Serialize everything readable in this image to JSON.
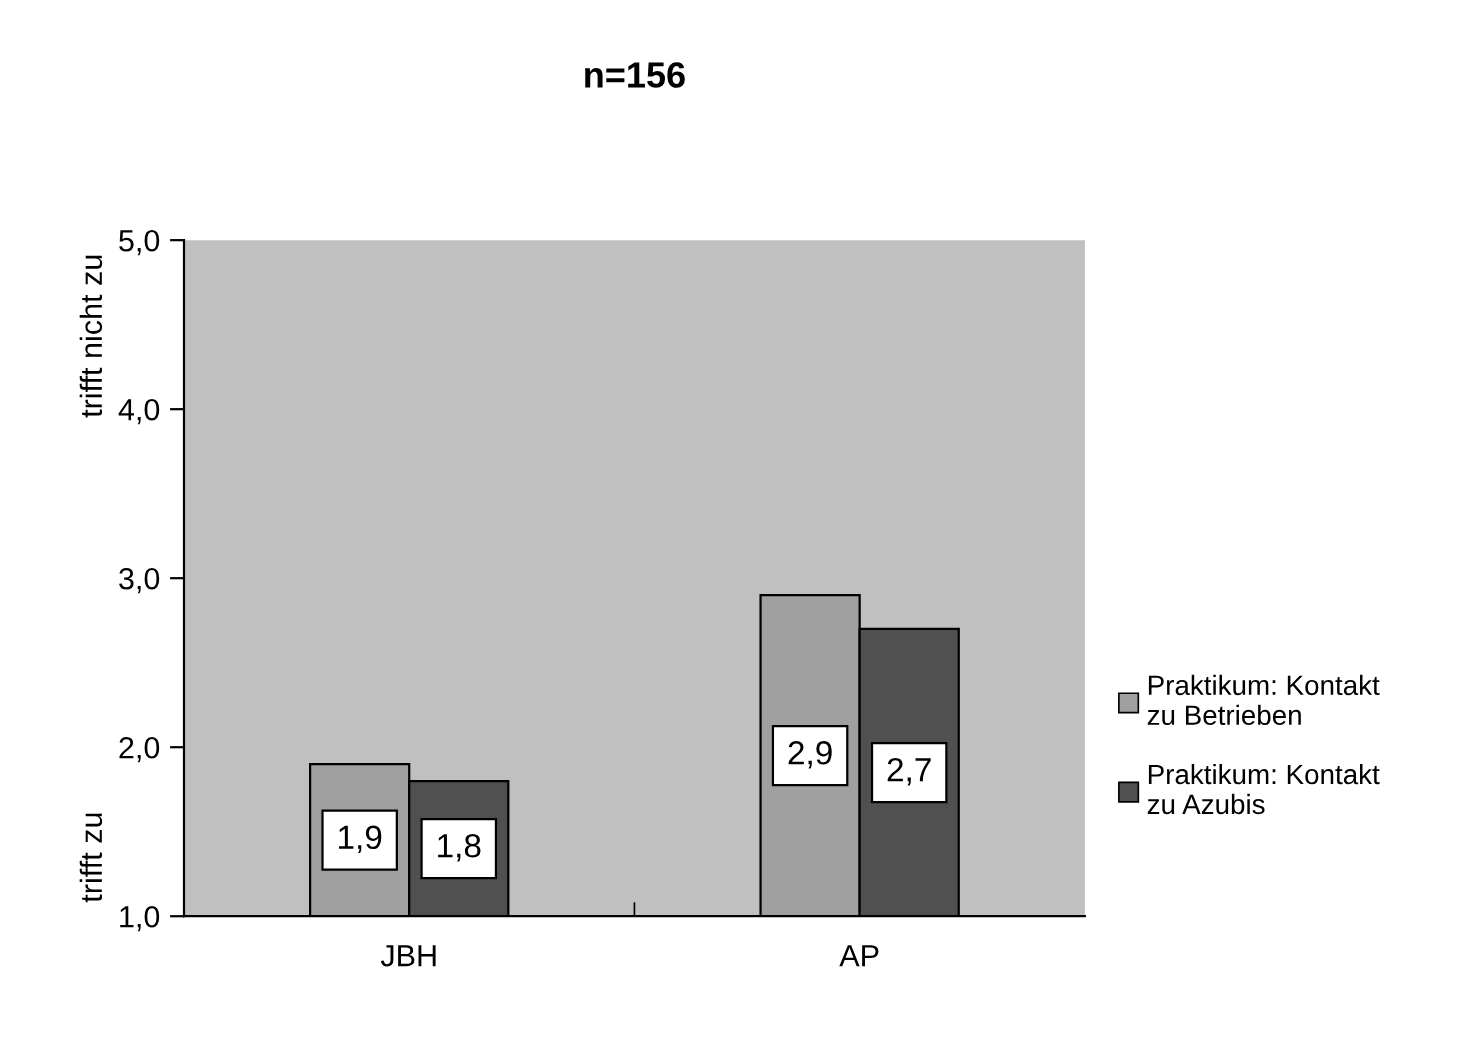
{
  "chart_data": {
    "type": "bar",
    "title": "n=156",
    "categories": [
      "JBH",
      "AP"
    ],
    "series": [
      {
        "name": "Praktikum: Kontakt\nzu Betrieben",
        "color": "#a0a0a0",
        "values": [
          1.9,
          2.9
        ],
        "value_labels": [
          "1,9",
          "2,9"
        ]
      },
      {
        "name": "Praktikum: Kontakt\nzu Azubis",
        "color": "#505050",
        "values": [
          1.8,
          2.7
        ],
        "value_labels": [
          "1,8",
          "2,7"
        ]
      }
    ],
    "ylim": [
      1.0,
      5.0
    ],
    "yticks": [
      {
        "value": 1.0,
        "label": "1,0"
      },
      {
        "value": 2.0,
        "label": "2,0"
      },
      {
        "value": 3.0,
        "label": "3,0"
      },
      {
        "value": 4.0,
        "label": "4,0"
      },
      {
        "value": 5.0,
        "label": "5,0"
      }
    ],
    "annotations": [
      "trifft zu",
      "trifft nicht zu"
    ],
    "grid": false,
    "legend": "right"
  }
}
